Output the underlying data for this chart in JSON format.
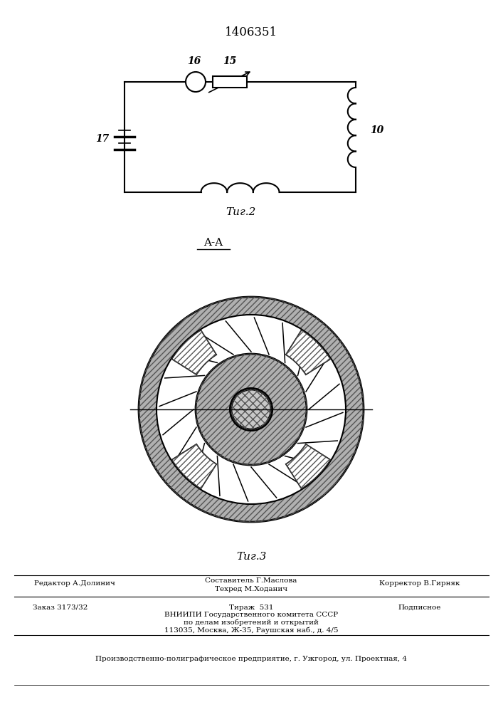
{
  "title_number": "1406351",
  "fig2_label": "Τиг.2",
  "fig3_label": "Τиг.3",
  "label_16": "16",
  "label_15": "15",
  "label_17": "17",
  "label_10": "10",
  "bg_color": "#ffffff",
  "line_color": "#000000",
  "footer_editor": "Редактор А.Долинич",
  "footer_compiler": "Составитель Г.Маслова",
  "footer_techred": "Техред М.Ходанич",
  "footer_corrector": "Корректор В.Гирняк",
  "footer_order": "Заказ 3173/32",
  "footer_tirazh": "Тираж  531",
  "footer_podp": "Подписное",
  "footer_vnipi": "ВНИИПИ Государственного комитета СССР",
  "footer_po": "по делам изобретений и открытий",
  "footer_address": "113035, Москва, Ж-35, Раушская наб., д. 4/5",
  "footer_factory": "Производственно-полиграфическое предприятие, г. Ужгород, ул. Проектная, 4"
}
